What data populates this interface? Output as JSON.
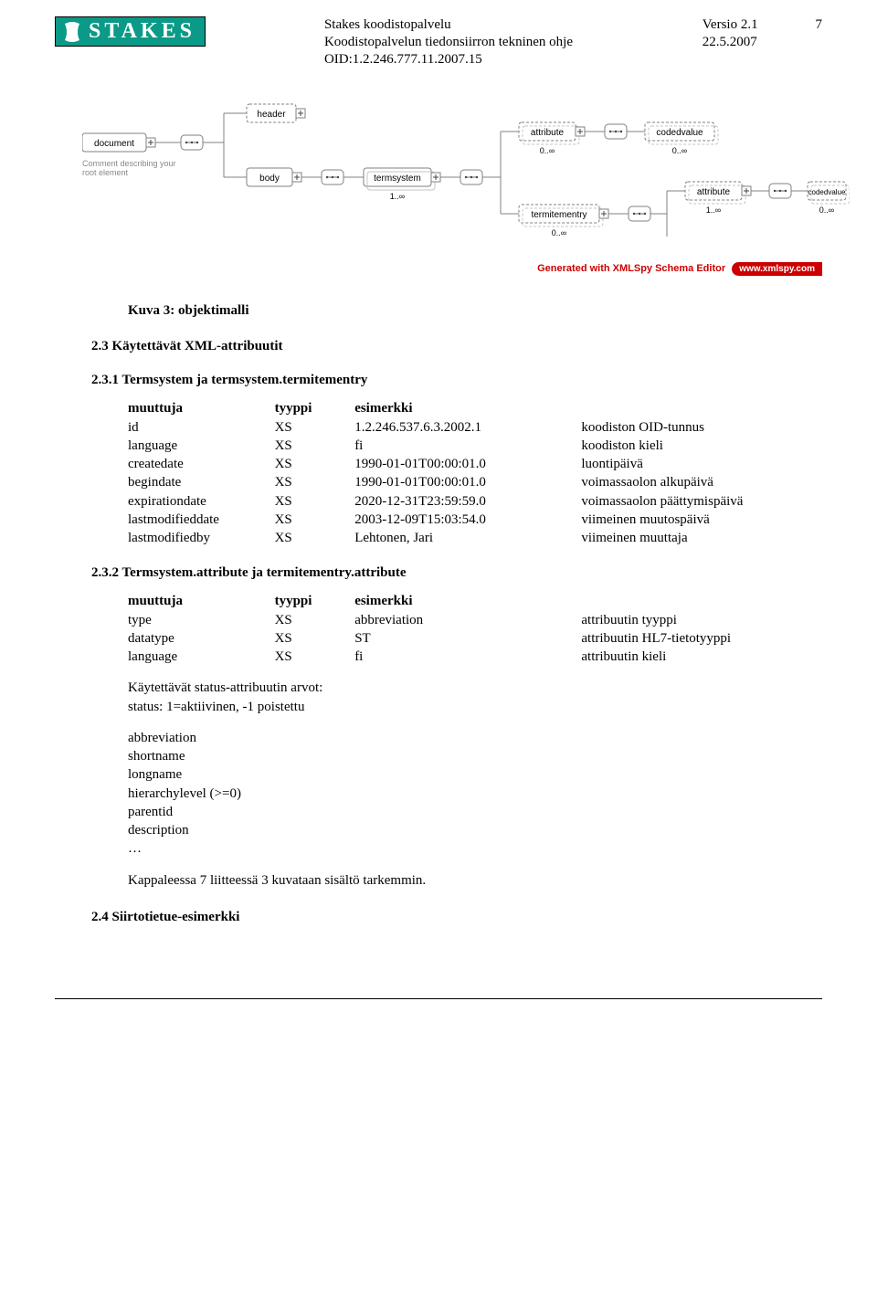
{
  "logo_text": "STAKES",
  "header": {
    "title1": "Stakes koodistopalvelu",
    "title2": "Koodistopalvelun tiedonsiirron tekninen ohje",
    "oid": "OID:1.2.246.777.11.2007.15",
    "version": "Versio 2.1",
    "date": "22.5.2007",
    "page": "7"
  },
  "diagram": {
    "bg": "#fafafa",
    "line": "#808080",
    "dash": "#808080",
    "text": "#222",
    "rootlabel": "Comment describing your root element",
    "nodes": {
      "document": "document",
      "header": "header",
      "body": "body",
      "termsystem": "termsystem",
      "attribute": "attribute",
      "codedvalue": "codedvalue",
      "termitementry": "termitementry"
    },
    "card": {
      "zero_inf": "0..∞",
      "one_inf": "1..∞"
    }
  },
  "xmlspy_text": "Generated with XMLSpy Schema Editor",
  "xmlspy_link": "www.xmlspy.com",
  "fig_caption": "Kuva 3:  objektimalli",
  "sec23": "2.3    Käytettävät XML-attribuutit",
  "sec231": "2.3.1   Termsystem ja termsystem.termitementry",
  "table1": {
    "head": [
      "muuttuja",
      "tyyppi",
      "esimerkki",
      ""
    ],
    "rows": [
      [
        "id",
        "XS",
        "1.2.246.537.6.3.2002.1",
        "koodiston OID-tunnus"
      ],
      [
        "language",
        "XS",
        "fi",
        "koodiston kieli"
      ],
      [
        "createdate",
        "XS",
        "1990-01-01T00:00:01.0",
        "luontipäivä"
      ],
      [
        "begindate",
        "XS",
        "1990-01-01T00:00:01.0",
        "voimassaolon alkupäivä"
      ],
      [
        "expirationdate",
        "XS",
        "2020-12-31T23:59:59.0",
        "voimassaolon päättymispäivä"
      ],
      [
        "lastmodifieddate",
        "XS",
        "2003-12-09T15:03:54.0",
        "viimeinen muutospäivä"
      ],
      [
        "lastmodifiedby",
        "XS",
        "Lehtonen, Jari",
        "viimeinen muuttaja"
      ]
    ]
  },
  "sec232": "2.3.2   Termsystem.attribute ja termitementry.attribute",
  "table2": {
    "head": [
      "muuttuja",
      "tyyppi",
      "esimerkki",
      ""
    ],
    "rows": [
      [
        "type",
        "XS",
        "abbreviation",
        "attribuutin tyyppi"
      ],
      [
        "datatype",
        "XS",
        "ST",
        "attribuutin HL7-tietotyyppi"
      ],
      [
        "language",
        "XS",
        "fi",
        "attribuutin kieli"
      ]
    ]
  },
  "status_block": {
    "l1": "Käytettävät status-attribuutin arvot:",
    "l2": "status: 1=aktiivinen, -1 poistettu"
  },
  "attr_list": [
    "abbreviation",
    "shortname",
    "longname",
    "hierarchylevel  (>=0)",
    "parentid",
    "description",
    "…"
  ],
  "para_kappale": "Kappaleessa 7 liitteessä 3 kuvataan sisältö tarkemmin.",
  "sec24": "2.4    Siirtotietue-esimerkki"
}
